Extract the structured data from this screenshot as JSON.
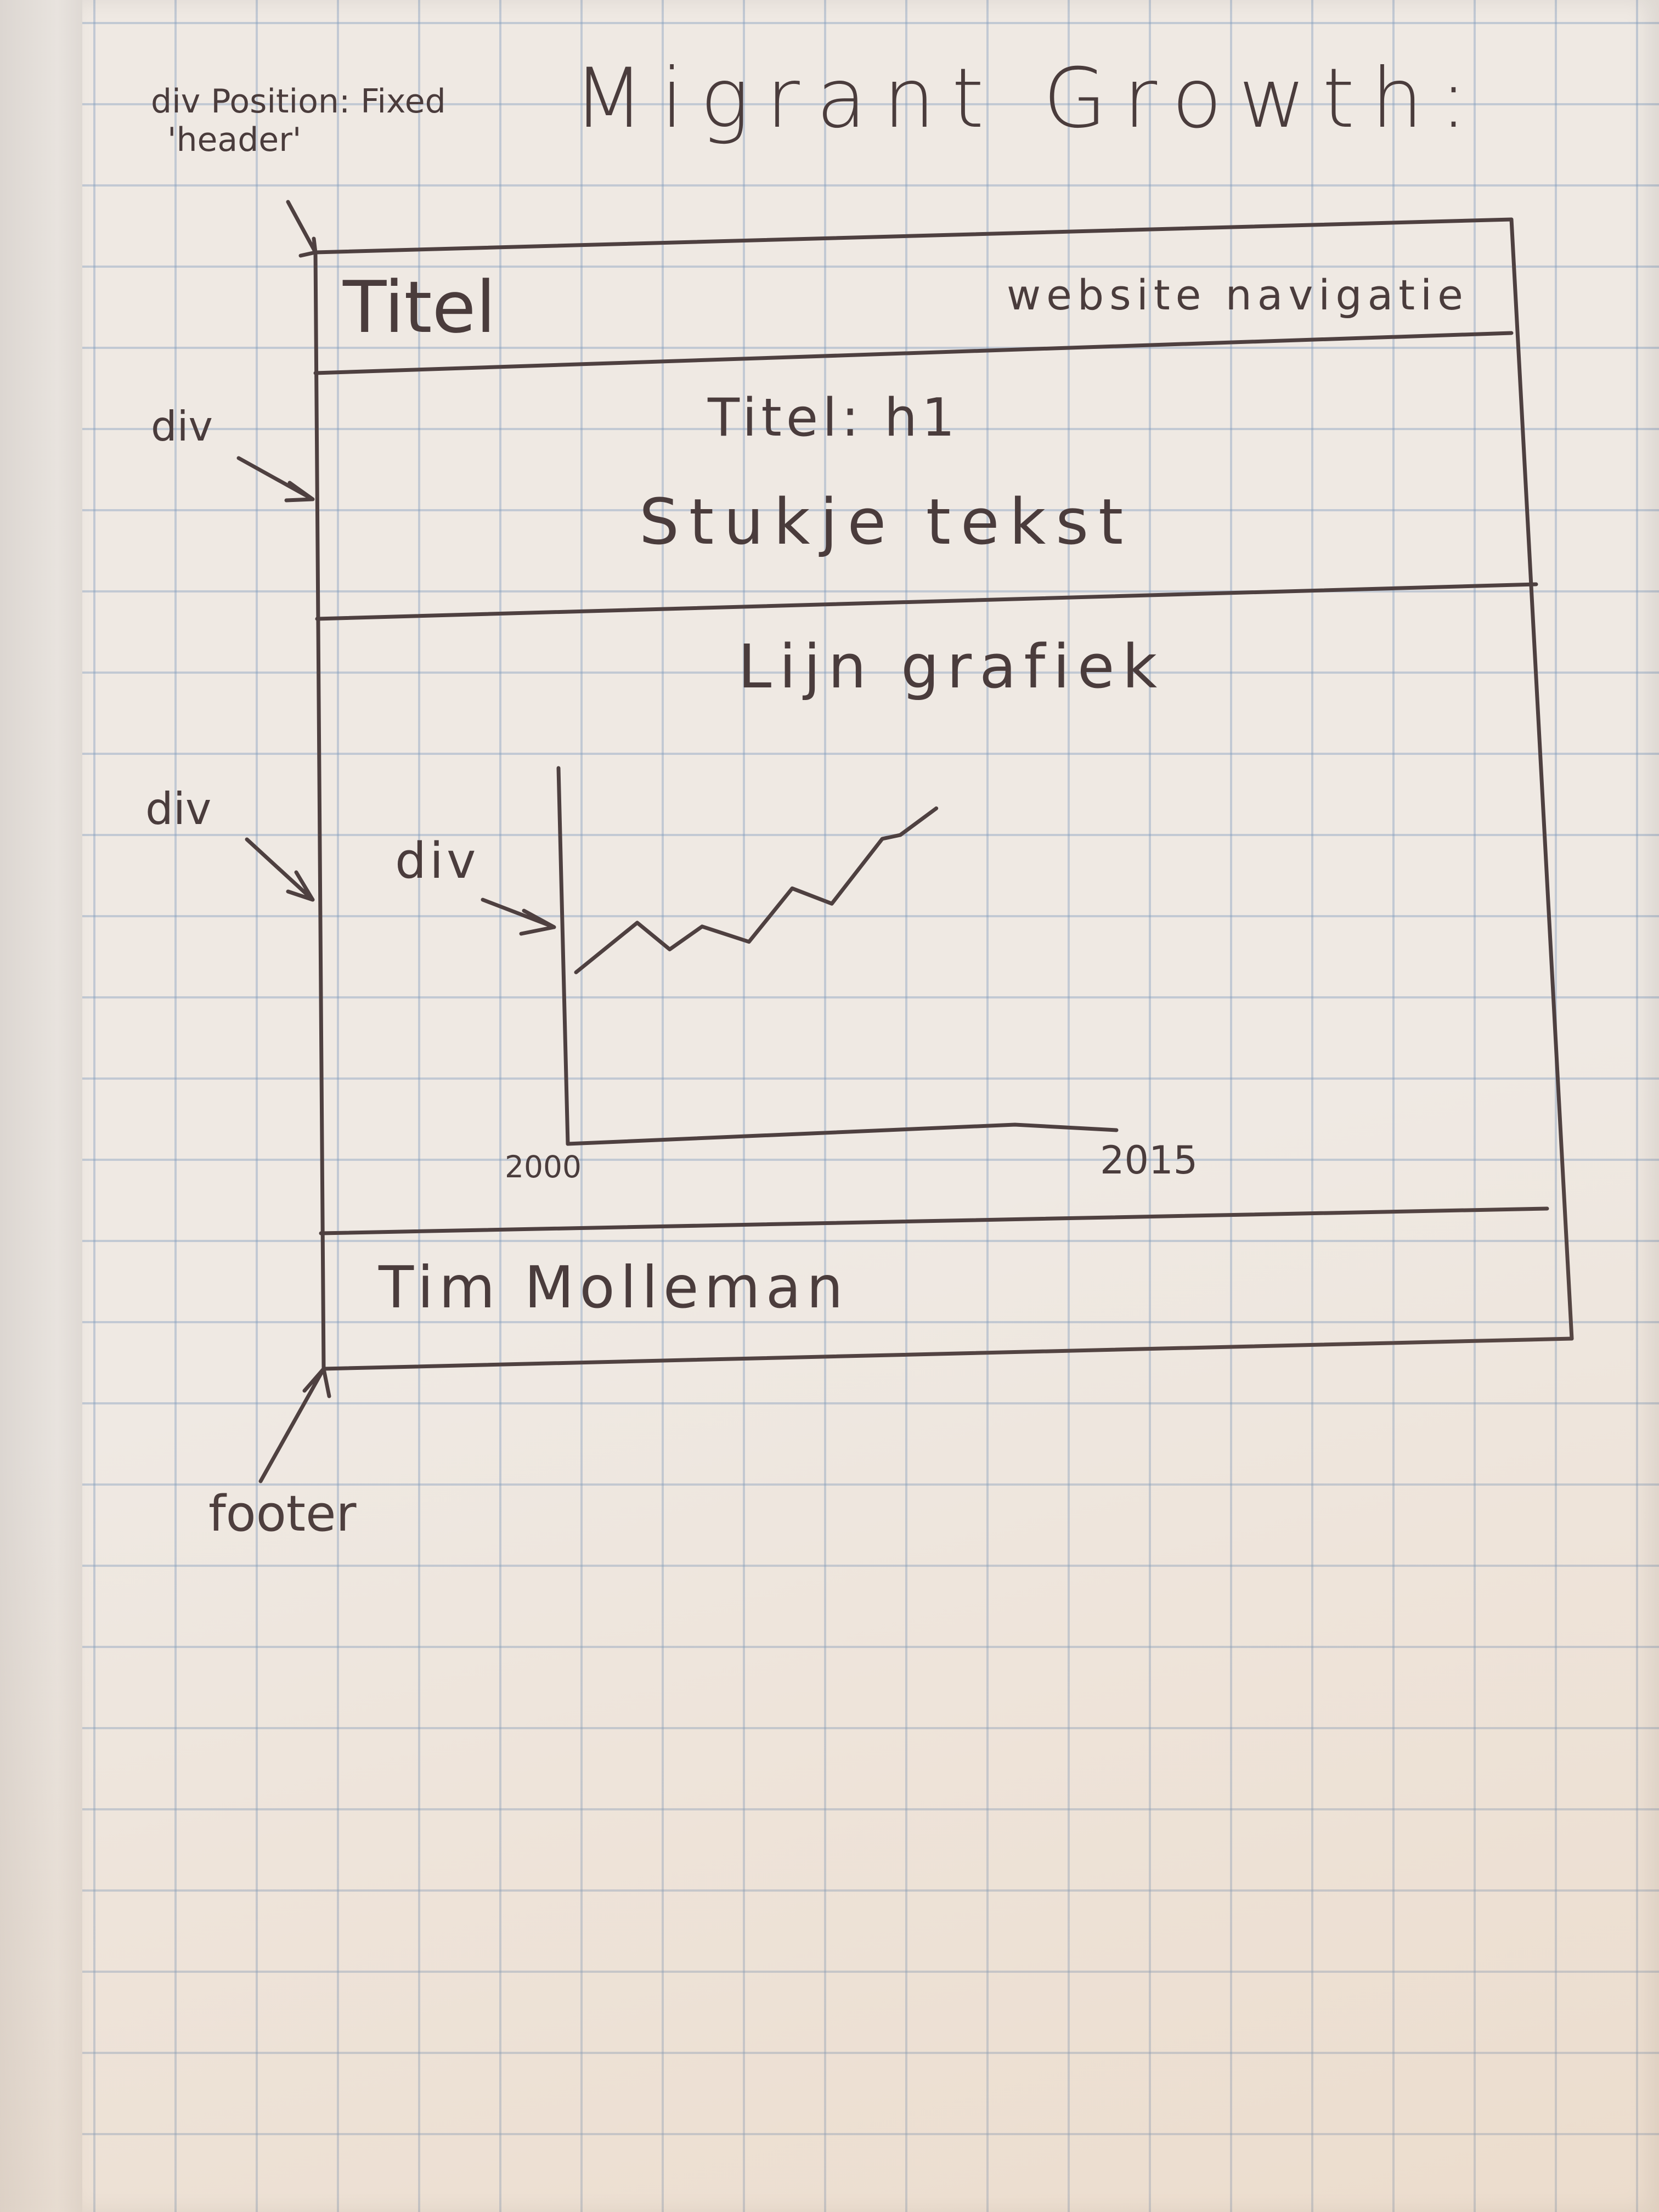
{
  "sketch_title": "Migrant Growth:",
  "annotations": {
    "header_note_line1": "div Position: Fixed",
    "header_note_line2": "'header'",
    "div_label_intro": "div",
    "div_label_chart_section": "div",
    "div_label_chart": "div",
    "footer_label": "footer"
  },
  "header": {
    "title": "Titel",
    "navigation": "website navigatie"
  },
  "intro": {
    "heading": "Titel: h1",
    "text": "Stukje tekst"
  },
  "chart_section": {
    "heading": "Lijn grafiek"
  },
  "chart_data": {
    "type": "line",
    "x_start_label": "2000",
    "x_end_label": "2015",
    "xlim": [
      2000,
      2015
    ],
    "series": [
      {
        "values": [
          [
            2000,
            0.45
          ],
          [
            2001.7,
            0.58
          ],
          [
            2002.6,
            0.51
          ],
          [
            2003.5,
            0.57
          ],
          [
            2004.8,
            0.53
          ],
          [
            2006.0,
            0.67
          ],
          [
            2007.1,
            0.63
          ],
          [
            2008.5,
            0.8
          ],
          [
            2009.0,
            0.81
          ],
          [
            2010.0,
            0.88
          ]
        ]
      }
    ]
  },
  "footer": {
    "author": "Tim Molleman"
  }
}
